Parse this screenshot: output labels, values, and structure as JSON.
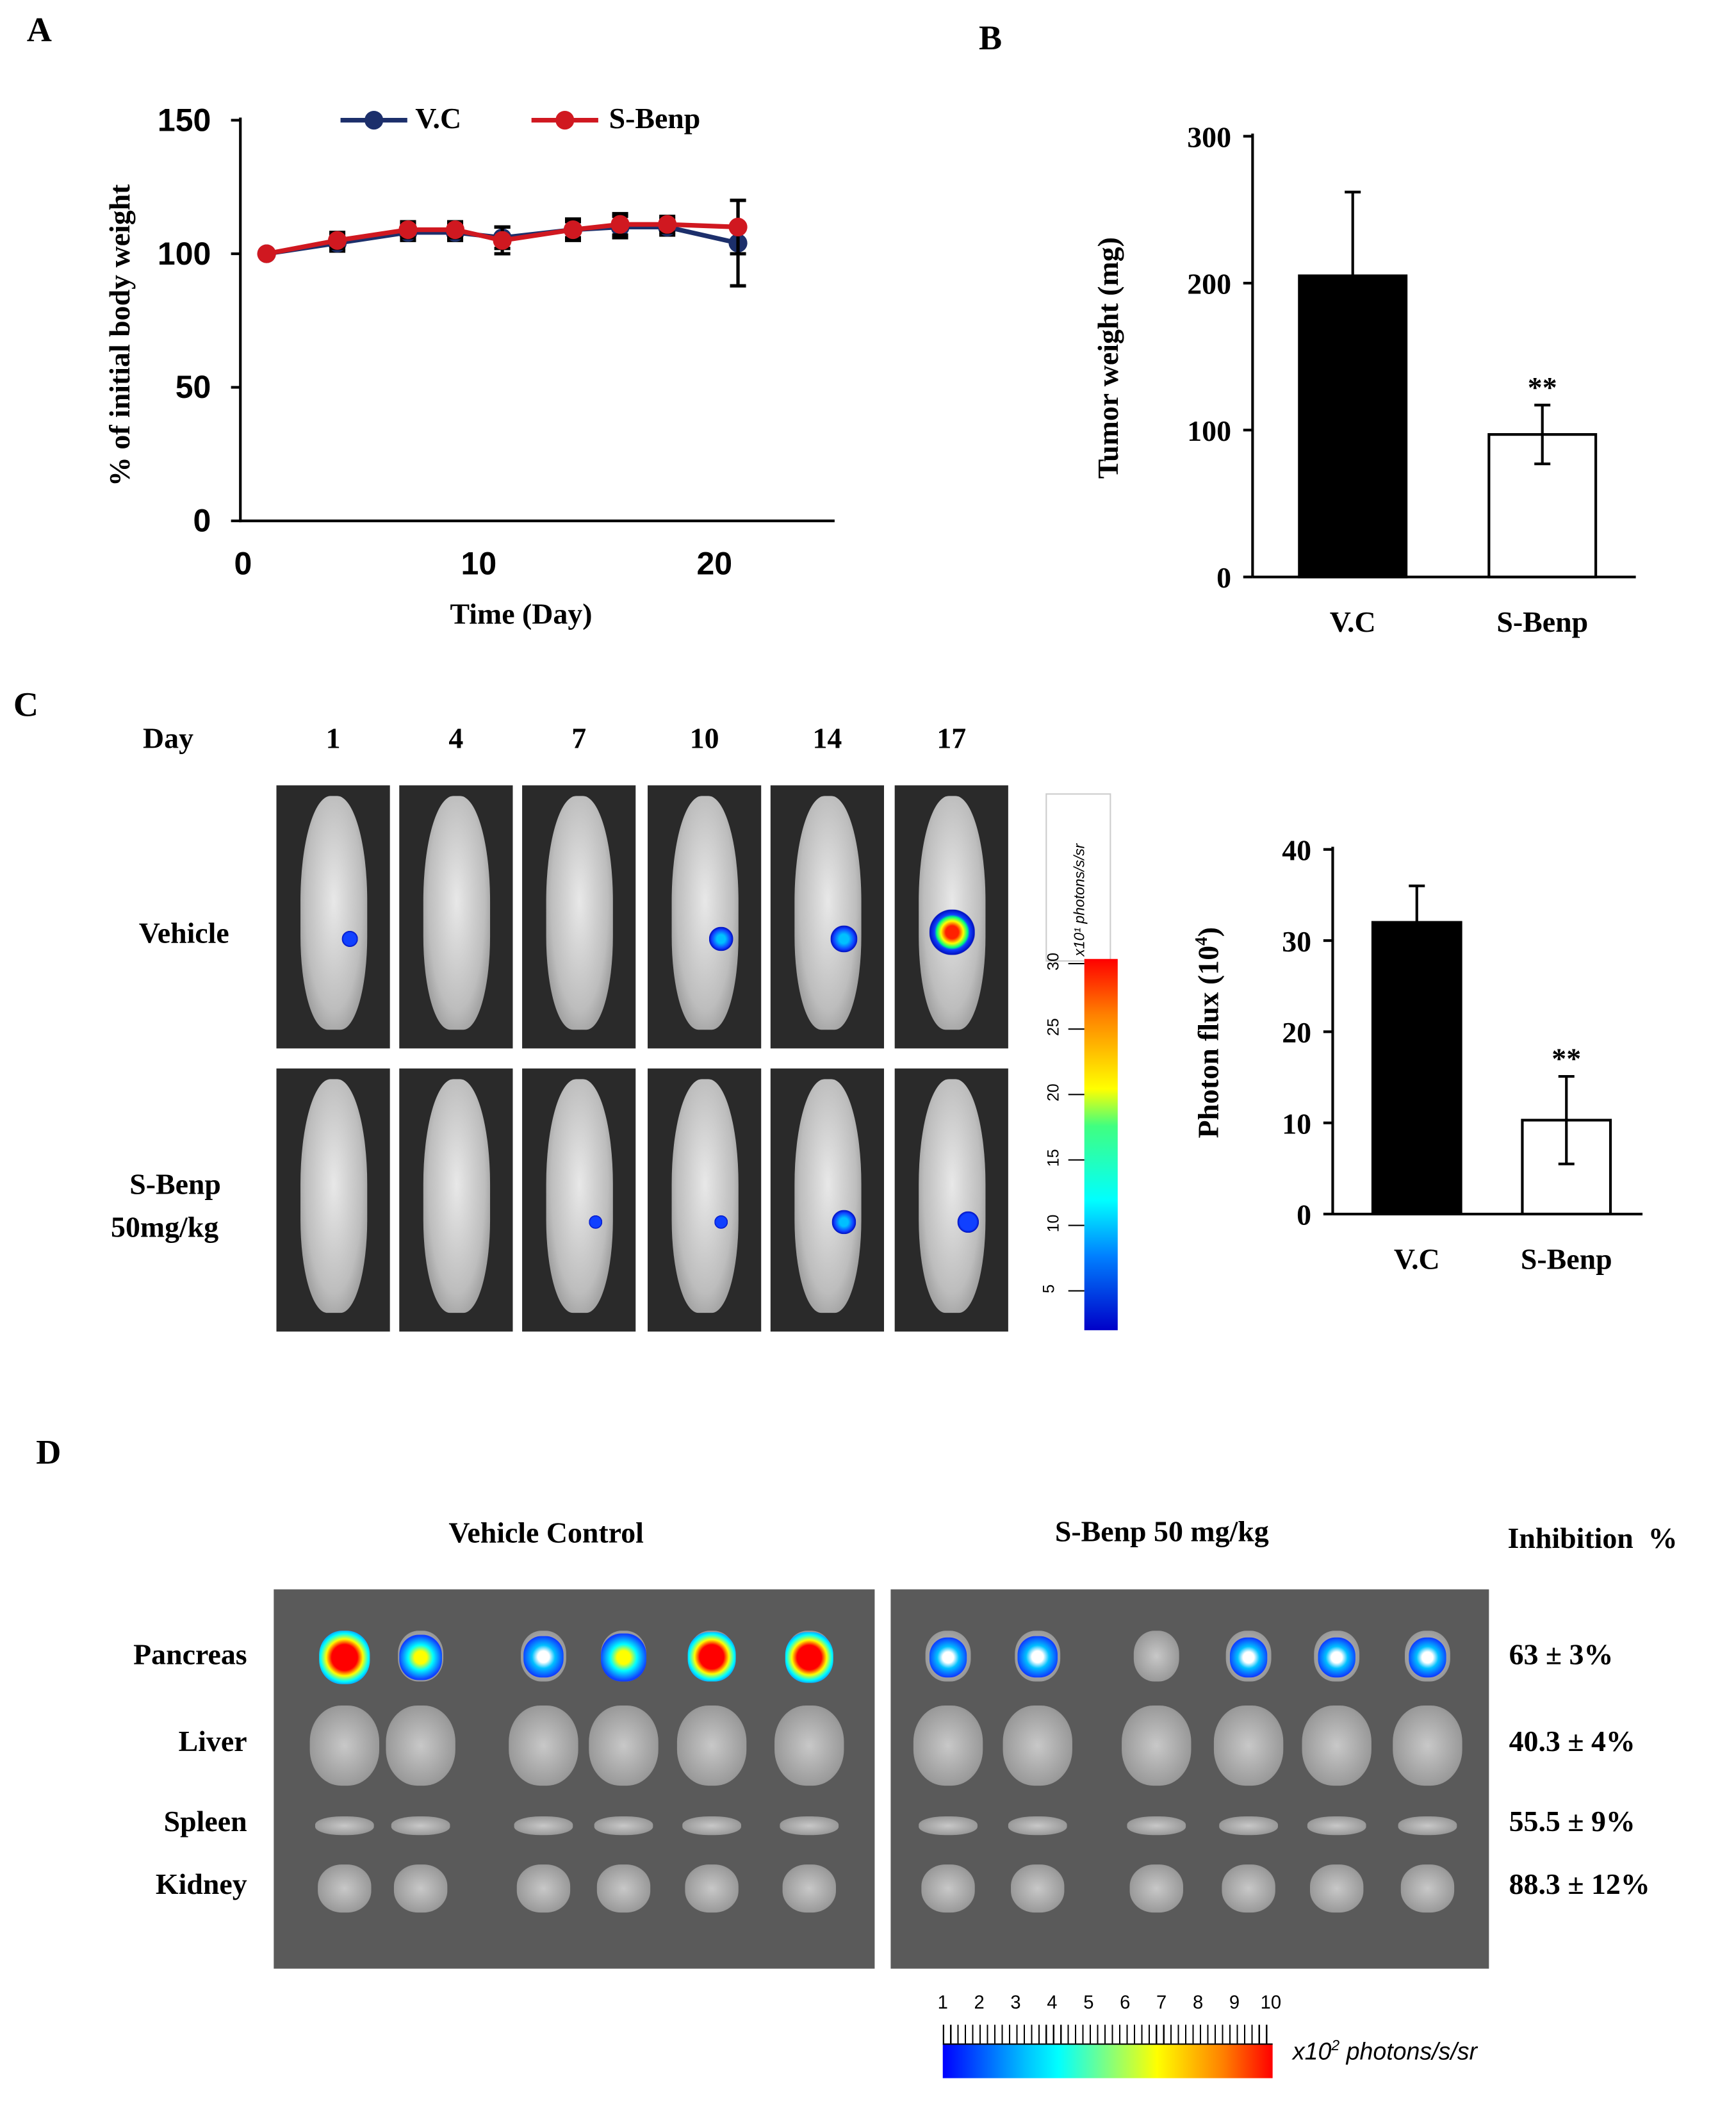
{
  "panels": {
    "a": "A",
    "b": "B",
    "c": "C",
    "d": "D"
  },
  "chart_data": [
    {
      "type": "line",
      "panel": "A",
      "xlabel": "Time (Day)",
      "ylabel": "% of initial body weight",
      "xlim": [
        0,
        25
      ],
      "ylim": [
        0,
        150
      ],
      "xticks": [
        0,
        10,
        20
      ],
      "yticks": [
        0,
        50,
        100,
        150
      ],
      "legend": "top",
      "x": [
        1,
        4,
        7,
        9,
        11,
        14,
        16,
        18,
        21
      ],
      "series": [
        {
          "name": "V.C",
          "color": "#1c2f6b",
          "values": [
            100,
            104,
            108,
            108,
            106,
            109,
            110,
            110,
            104
          ],
          "errors": [
            1,
            3,
            3,
            3,
            4,
            3,
            4,
            3,
            16
          ]
        },
        {
          "name": "S-Benp",
          "color": "#d01820",
          "values": [
            100,
            105,
            109,
            109,
            105,
            109,
            111,
            111,
            110
          ],
          "errors": [
            1,
            3,
            3,
            3,
            5,
            4,
            4,
            3,
            10
          ]
        }
      ]
    },
    {
      "type": "bar",
      "panel": "B",
      "categories": [
        "V.C",
        "S-Benp"
      ],
      "values": [
        205,
        97
      ],
      "errors": [
        57,
        20
      ],
      "ylabel": "Tumor weight (mg)",
      "ylim": [
        0,
        300
      ],
      "yticks": [
        0,
        100,
        200,
        300
      ],
      "significance": [
        "",
        "**"
      ],
      "colors": [
        "#000000",
        "#ffffff"
      ]
    },
    {
      "type": "bar",
      "panel": "C",
      "categories": [
        "V.C",
        "S-Benp"
      ],
      "values": [
        32,
        10.3
      ],
      "errors": [
        4,
        4.8
      ],
      "ylabel": "Photon flux (10",
      "ylabel_sup": "4",
      "ylabel_end": ")",
      "ylim": [
        0,
        40
      ],
      "yticks": [
        0,
        10,
        20,
        30,
        40
      ],
      "significance": [
        "",
        "**"
      ],
      "colors": [
        "#000000",
        "#ffffff"
      ]
    }
  ],
  "imaging": {
    "day_label": "Day",
    "days": [
      "1",
      "4",
      "7",
      "10",
      "14",
      "17"
    ],
    "rows": [
      {
        "label": "Vehicle",
        "signal": [
          0.15,
          0,
          0,
          0.35,
          0.45,
          1.0
        ]
      },
      {
        "label": "S-Benp",
        "label2": "50mg/kg",
        "signal": [
          0,
          0,
          0.1,
          0.05,
          0.4,
          0.3
        ]
      }
    ],
    "colorbar": {
      "unit": "x10¹ photons/s/sr",
      "ticks": [
        "5",
        "10",
        "15",
        "20",
        "25",
        "30"
      ]
    }
  },
  "organs": {
    "group1": "Vehicle Control",
    "group2": "S-Benp 50 mg/kg",
    "inhibition_header": "Inhibition  %",
    "rows": [
      {
        "name": "Pancreas",
        "inhibition": "63 ± 3%"
      },
      {
        "name": "Liver",
        "inhibition": "40.3 ± 4%"
      },
      {
        "name": "Spleen",
        "inhibition": "55.5 ± 9%"
      },
      {
        "name": "Kidney",
        "inhibition": "88.3 ± 12%"
      }
    ],
    "pancreas_signal": [
      [
        1.0,
        0.6,
        0.4,
        0.7,
        0.8,
        0.85
      ],
      [
        0.35,
        0.4,
        0,
        0.3,
        0.35,
        0.35
      ]
    ],
    "colorbar": {
      "ticks": [
        "1",
        "2",
        "3",
        "4",
        "5",
        "6",
        "7",
        "8",
        "9",
        "10"
      ],
      "unit_prefix": "x10",
      "unit_sup": "2",
      "unit_suffix": " photons/s/sr"
    }
  }
}
